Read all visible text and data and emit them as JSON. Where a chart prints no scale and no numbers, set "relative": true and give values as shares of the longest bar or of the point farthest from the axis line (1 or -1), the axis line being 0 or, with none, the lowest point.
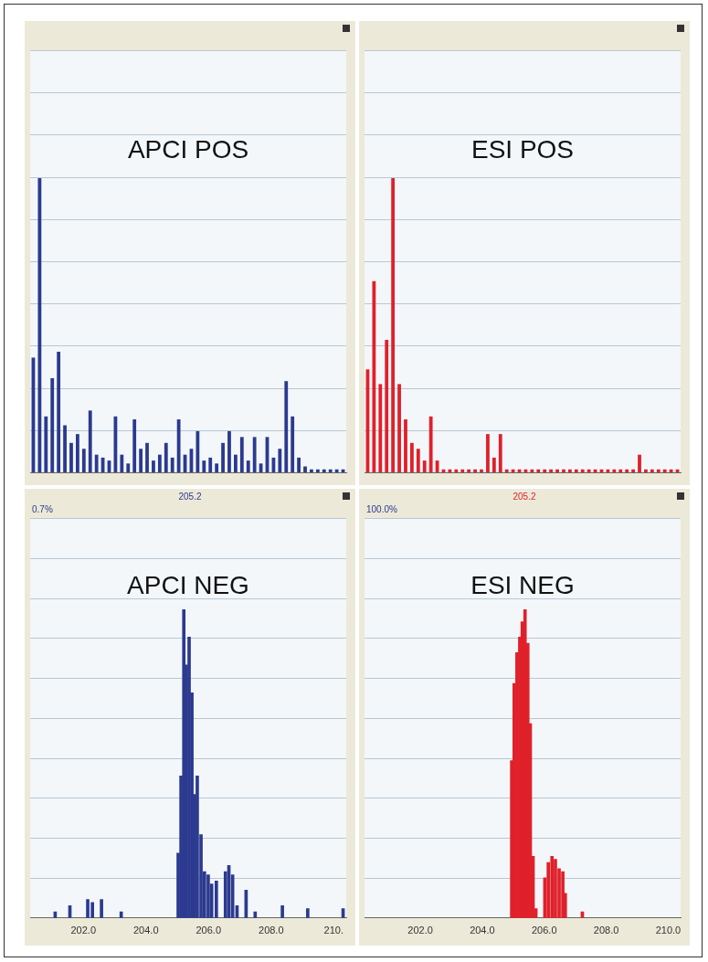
{
  "chart_data": [
    {
      "type": "bar",
      "title": "APCI POS",
      "relative": true,
      "grid": "y",
      "tick_labels": false,
      "categories": [
        null,
        null,
        null,
        null,
        null,
        null,
        null,
        null,
        null,
        null,
        null,
        null,
        null,
        null,
        null,
        null,
        null,
        null,
        null,
        null,
        null,
        null,
        null,
        null,
        null,
        null,
        null,
        null,
        null,
        null,
        null,
        null,
        null,
        null,
        null,
        null,
        null,
        null,
        null,
        null,
        null,
        null,
        null,
        null,
        null,
        null,
        null,
        null,
        null,
        null
      ],
      "series": [
        {
          "color": "#2b3a8f",
          "values": [
            0.39,
            1,
            0.19,
            0.32,
            0.41,
            0.16,
            0.1,
            0.13,
            0.08,
            0.21,
            0.06,
            0.05,
            0.04,
            0.19,
            0.06,
            0.03,
            0.18,
            0.08,
            0.1,
            0.04,
            0.06,
            0.1,
            0.05,
            0.18,
            0.06,
            0.08,
            0.14,
            0.04,
            0.05,
            0.03,
            0.1,
            0.14,
            0.06,
            0.12,
            0.04,
            0.12,
            0.03,
            0.12,
            0.05,
            0.08,
            0.31,
            0.19,
            0.05,
            0.02,
            0.01,
            0.01,
            0.01,
            0.01,
            0.01,
            0.01
          ]
        }
      ]
    },
    {
      "type": "bar",
      "title": "ESI POS",
      "relative": true,
      "grid": "y",
      "tick_labels": false,
      "categories": [
        null,
        null,
        null,
        null,
        null,
        null,
        null,
        null,
        null,
        null,
        null,
        null,
        null,
        null,
        null,
        null,
        null,
        null,
        null,
        null,
        null,
        null,
        null,
        null,
        null,
        null,
        null,
        null,
        null,
        null,
        null,
        null,
        null,
        null,
        null,
        null,
        null,
        null,
        null,
        null,
        null,
        null,
        null,
        null,
        null,
        null,
        null,
        null,
        null,
        null
      ],
      "series": [
        {
          "color": "#e0202a",
          "values": [
            0.35,
            0.65,
            0.3,
            0.45,
            1,
            0.3,
            0.18,
            0.1,
            0.08,
            0.04,
            0.19,
            0.04,
            0.01,
            0.01,
            0.01,
            0.01,
            0.01,
            0.01,
            0.01,
            0.13,
            0.05,
            0.13,
            0.01,
            0.01,
            0.01,
            0.01,
            0.01,
            0.01,
            0.01,
            0.01,
            0.01,
            0.01,
            0.01,
            0.01,
            0.01,
            0.01,
            0.01,
            0.01,
            0.01,
            0.01,
            0.01,
            0.01,
            0.01,
            0.06,
            0.01,
            0.01,
            0.01,
            0.01,
            0.01,
            0.01
          ]
        }
      ]
    },
    {
      "type": "bar",
      "title": "APCI NEG",
      "subtitle": "205.2",
      "annotations": [
        "0.7%"
      ],
      "relative": true,
      "grid": "y",
      "tick_labels": "x",
      "xlim": [
        200.3,
        210.4
      ],
      "xticks": [
        {
          "value": 202,
          "label": "202.0"
        },
        {
          "value": 204,
          "label": "204.0"
        },
        {
          "value": 206,
          "label": "206.0"
        },
        {
          "value": 208,
          "label": "208.0"
        },
        {
          "value": 210,
          "label": "210."
        }
      ],
      "x": [
        201.1,
        201.57,
        202.14,
        202.29,
        202.58,
        203.21,
        205.03,
        205.12,
        205.21,
        205.29,
        205.38,
        205.47,
        205.55,
        205.64,
        205.76,
        205.87,
        205.99,
        206.1,
        206.25,
        206.54,
        206.65,
        206.77,
        206.91,
        207.2,
        207.49,
        208.36,
        209.17,
        210.3
      ],
      "series": [
        {
          "color": "#2b3a8f",
          "values": [
            0.02,
            0.04,
            0.06,
            0.05,
            0.06,
            0.02,
            0.21,
            0.46,
            1,
            0.82,
            0.91,
            0.73,
            0.4,
            0.46,
            0.27,
            0.15,
            0.14,
            0.11,
            0.12,
            0.15,
            0.17,
            0.14,
            0.04,
            0.09,
            0.02,
            0.04,
            0.03,
            0.03
          ]
        }
      ]
    },
    {
      "type": "bar",
      "title": "ESI NEG",
      "subtitle": "205.2",
      "annotations": [
        "100.0%"
      ],
      "relative": true,
      "grid": "y",
      "tick_labels": "x",
      "xlim": [
        200.2,
        210.4
      ],
      "xticks": [
        {
          "value": 202,
          "label": "202.0"
        },
        {
          "value": 204,
          "label": "204.0"
        },
        {
          "value": 206,
          "label": "206.0"
        },
        {
          "value": 208,
          "label": "208.0"
        },
        {
          "value": 210,
          "label": "210.0"
        }
      ],
      "x": [
        204.95,
        205.03,
        205.12,
        205.21,
        205.29,
        205.38,
        205.47,
        205.55,
        205.64,
        205.73,
        206.02,
        206.13,
        206.25,
        206.36,
        206.48,
        206.6,
        206.68,
        207.23
      ],
      "series": [
        {
          "color": "#e0202a",
          "values": [
            0.51,
            0.76,
            0.86,
            0.91,
            0.96,
            1,
            0.89,
            0.63,
            0.2,
            0.03,
            0.13,
            0.18,
            0.2,
            0.19,
            0.16,
            0.15,
            0.08,
            0.02
          ]
        }
      ]
    }
  ]
}
